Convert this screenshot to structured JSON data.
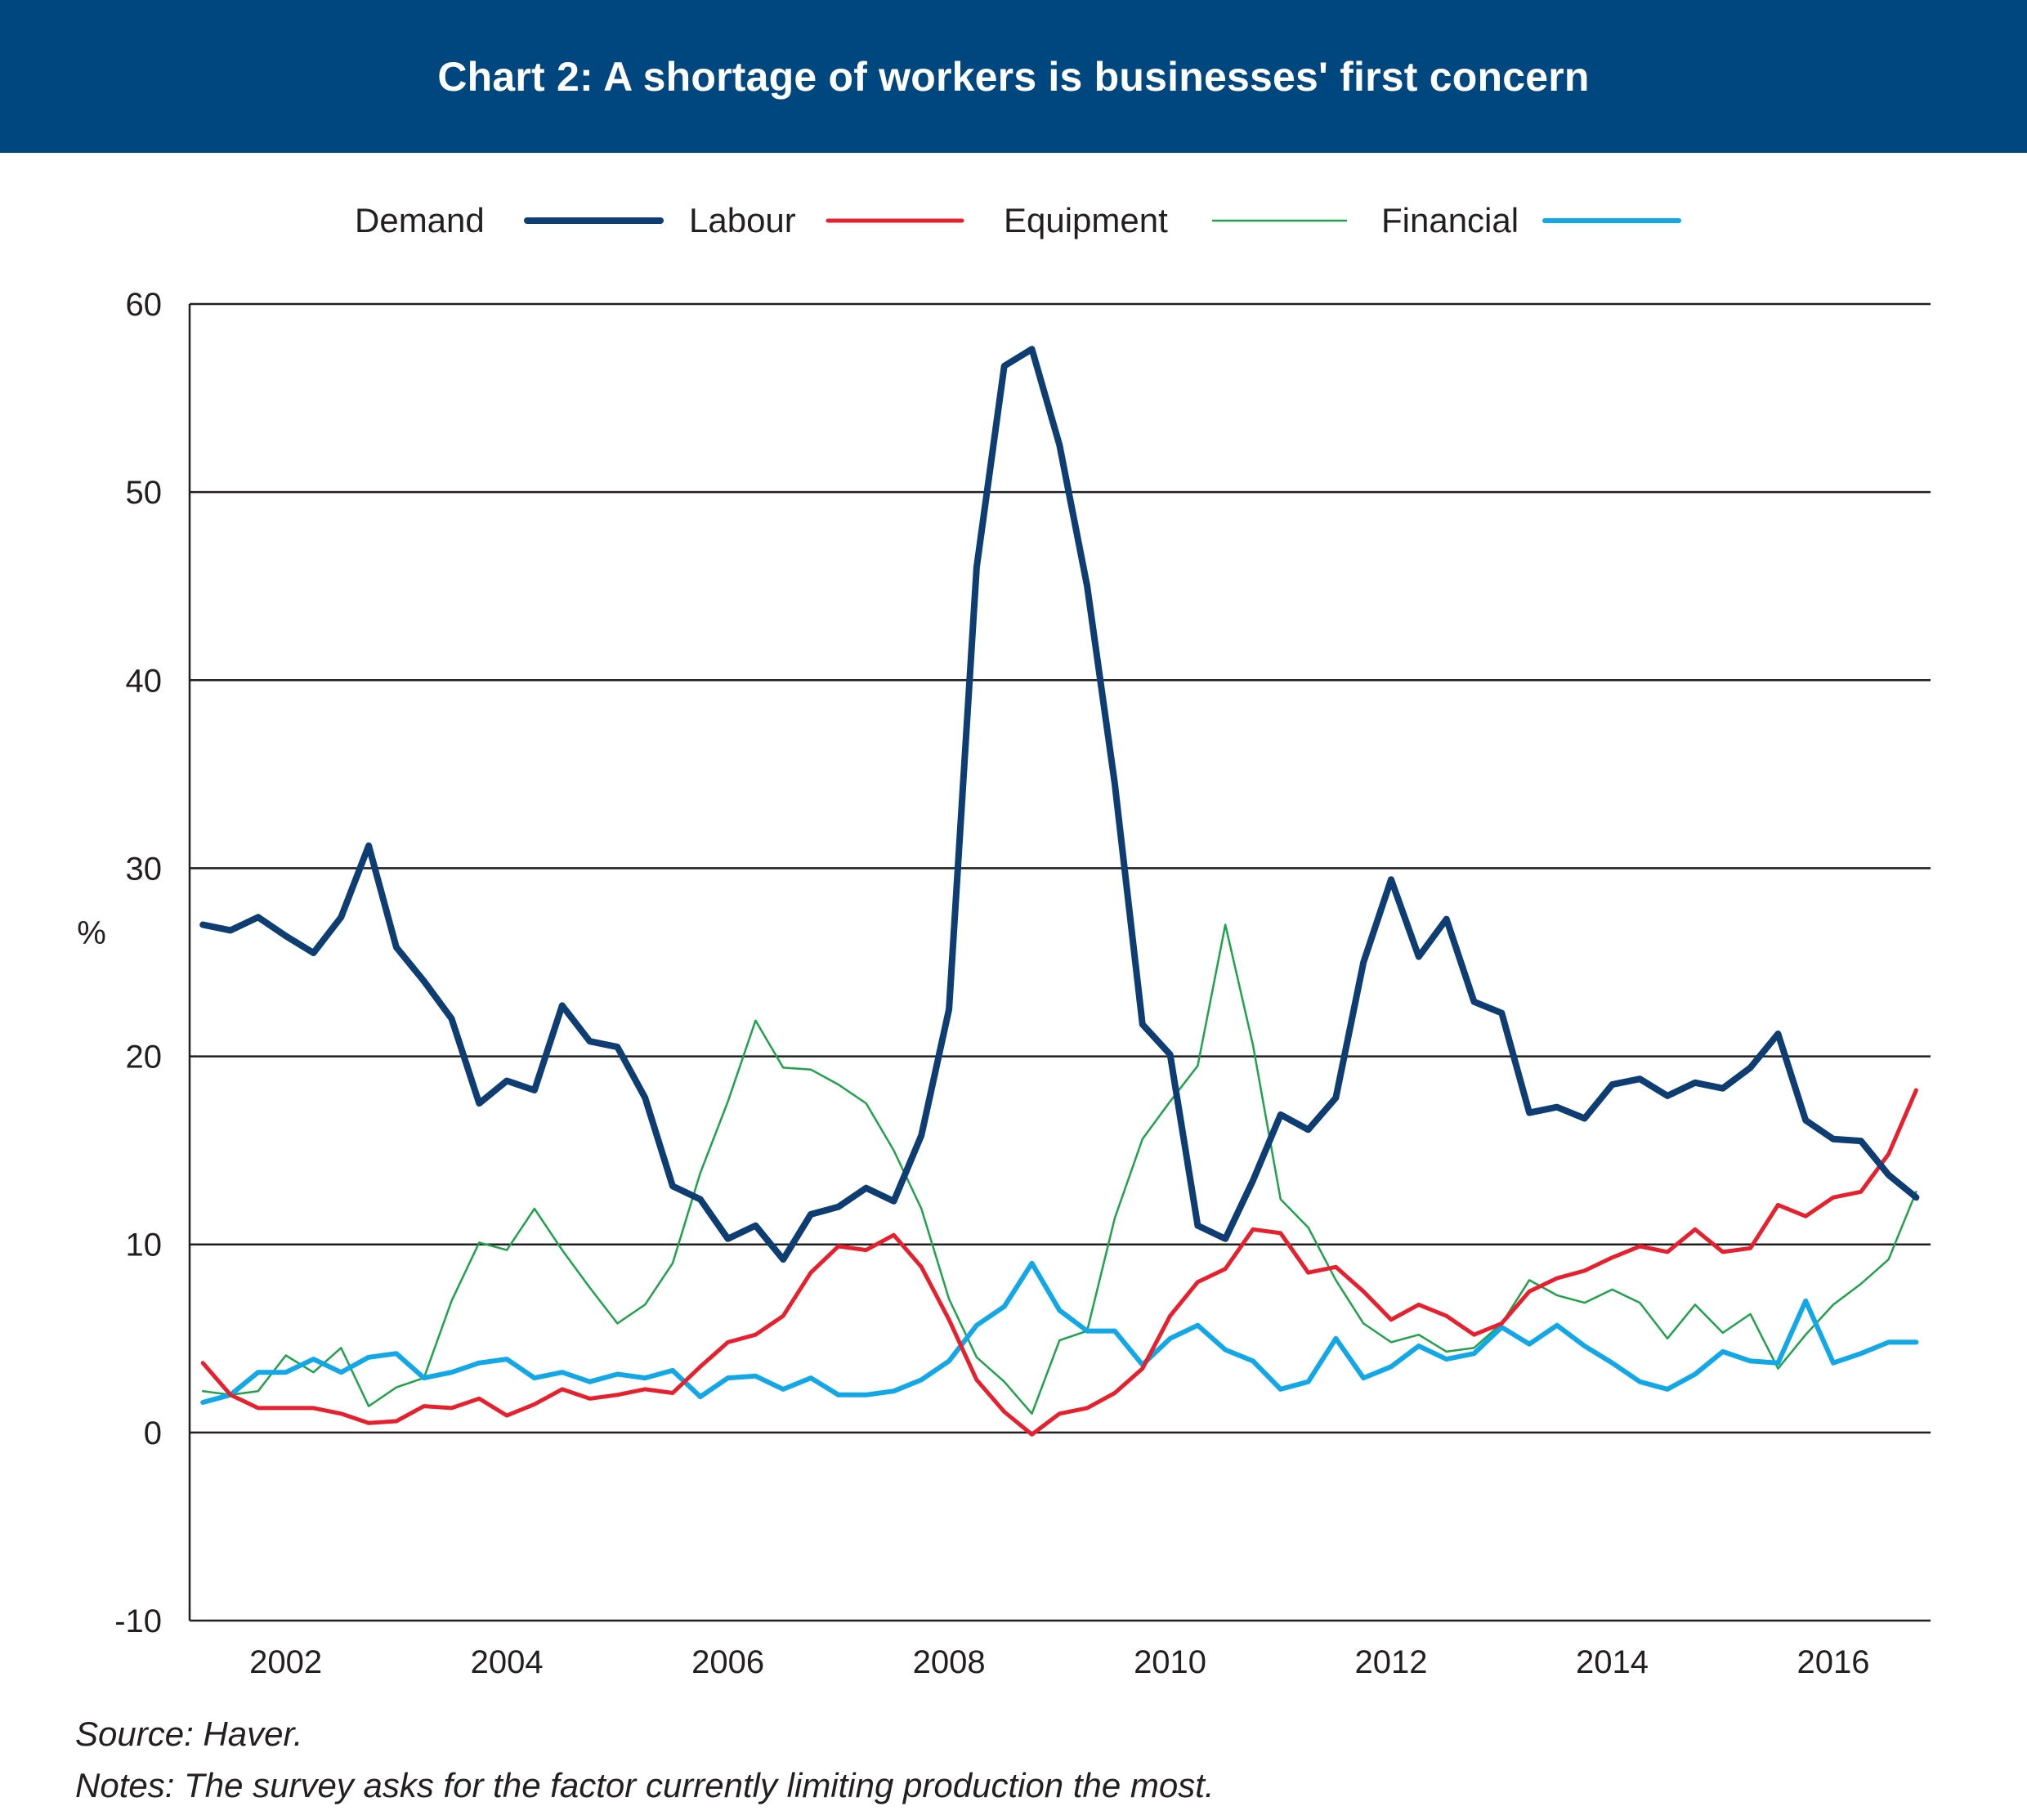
{
  "header": {
    "title": "Chart 2: A shortage of workers is businesses' first concern"
  },
  "footer": {
    "source": "Source: Haver.",
    "notes": "Notes: The survey asks for the factor currently limiting production the most."
  },
  "colors": {
    "banner": "#00467f",
    "demand": "#0d3d72",
    "labour": "#e8202e",
    "equipment": "#1ea24a",
    "financial": "#12a8e8"
  },
  "chart_data": {
    "type": "line",
    "title": "Chart 2: A shortage of workers is businesses' first concern",
    "ylabel": "%",
    "xlabel": "",
    "ylim": [
      -10,
      60
    ],
    "yticks": [
      -10,
      0,
      10,
      20,
      30,
      40,
      50,
      60
    ],
    "xlim": [
      2001.13,
      2016.88
    ],
    "xticks": [
      2002,
      2004,
      2006,
      2008,
      2010,
      2012,
      2014,
      2016
    ],
    "grid": "horizontal",
    "legend_position": "top",
    "x": [
      2001.25,
      2001.5,
      2001.75,
      2002.0,
      2002.25,
      2002.5,
      2002.75,
      2003.0,
      2003.25,
      2003.5,
      2003.75,
      2004.0,
      2004.25,
      2004.5,
      2004.75,
      2005.0,
      2005.25,
      2005.5,
      2005.75,
      2006.0,
      2006.25,
      2006.5,
      2006.75,
      2007.0,
      2007.25,
      2007.5,
      2007.75,
      2008.0,
      2008.25,
      2008.5,
      2008.75,
      2009.0,
      2009.25,
      2009.5,
      2009.75,
      2010.0,
      2010.25,
      2010.5,
      2010.75,
      2011.0,
      2011.25,
      2011.5,
      2011.75,
      2012.0,
      2012.25,
      2012.5,
      2012.75,
      2013.0,
      2013.25,
      2013.5,
      2013.75,
      2014.0,
      2014.25,
      2014.5,
      2014.75,
      2015.0,
      2015.25,
      2015.5,
      2015.75,
      2016.0,
      2016.25,
      2016.5,
      2016.75
    ],
    "series": [
      {
        "name": "Demand",
        "width": 8,
        "values": [
          27.0,
          26.7,
          27.4,
          26.4,
          25.5,
          27.4,
          31.2,
          25.8,
          24.0,
          22.0,
          17.5,
          18.7,
          18.2,
          22.7,
          20.8,
          20.5,
          17.8,
          13.1,
          12.4,
          10.3,
          11.0,
          9.2,
          11.6,
          12.0,
          13.0,
          12.3,
          15.8,
          22.5,
          46.0,
          56.7,
          57.6,
          52.5,
          45.0,
          34.5,
          21.7,
          20.1,
          11.0,
          10.3,
          13.4,
          16.9,
          16.1,
          17.8,
          25.0,
          29.4,
          25.3,
          27.3,
          22.9,
          22.3,
          17.0,
          17.3,
          16.7,
          18.5,
          18.8,
          17.9,
          18.6,
          18.3,
          19.4,
          21.2,
          16.6,
          15.6,
          15.5,
          13.7,
          12.5
        ]
      },
      {
        "name": "Labour",
        "width": 5,
        "values": [
          3.7,
          2.0,
          1.3,
          1.3,
          1.3,
          1.0,
          0.5,
          0.6,
          1.4,
          1.3,
          1.8,
          0.9,
          1.5,
          2.3,
          1.8,
          2.0,
          2.3,
          2.1,
          3.5,
          4.8,
          5.2,
          6.2,
          8.5,
          9.9,
          9.7,
          10.5,
          8.8,
          6.0,
          2.8,
          1.1,
          -0.1,
          1.0,
          1.3,
          2.1,
          3.4,
          6.2,
          8.0,
          8.7,
          10.8,
          10.6,
          8.5,
          8.8,
          7.5,
          6.0,
          6.8,
          6.2,
          5.2,
          5.8,
          7.5,
          8.2,
          8.6,
          9.3,
          9.9,
          9.6,
          10.8,
          9.6,
          9.8,
          12.1,
          11.5,
          12.5,
          12.8,
          14.8,
          18.2
        ]
      },
      {
        "name": "Equipment",
        "width": 2.5,
        "values": [
          2.2,
          2.0,
          2.2,
          4.1,
          3.2,
          4.5,
          1.4,
          2.4,
          2.9,
          7.0,
          10.1,
          9.7,
          11.9,
          9.7,
          7.7,
          5.8,
          6.8,
          9.0,
          13.8,
          17.6,
          21.9,
          19.4,
          19.3,
          18.5,
          17.5,
          15.0,
          11.9,
          7.1,
          4.0,
          2.7,
          1.0,
          4.9,
          5.4,
          11.4,
          15.6,
          17.6,
          19.5,
          27.0,
          20.6,
          12.4,
          10.9,
          8.1,
          5.8,
          4.8,
          5.2,
          4.3,
          4.5,
          5.8,
          8.1,
          7.3,
          6.9,
          7.6,
          6.9,
          5.0,
          6.8,
          5.3,
          6.3,
          3.4,
          5.2,
          6.8,
          7.9,
          9.2,
          12.8
        ]
      },
      {
        "name": "Financial",
        "width": 6,
        "values": [
          1.6,
          2.0,
          3.2,
          3.2,
          3.9,
          3.2,
          4.0,
          4.2,
          2.9,
          3.2,
          3.7,
          3.9,
          2.9,
          3.2,
          2.7,
          3.1,
          2.9,
          3.3,
          1.9,
          2.9,
          3.0,
          2.3,
          2.9,
          2.0,
          2.0,
          2.2,
          2.8,
          3.8,
          5.7,
          6.7,
          9.0,
          6.5,
          5.4,
          5.4,
          3.6,
          5.0,
          5.7,
          4.4,
          3.8,
          2.3,
          2.7,
          5.0,
          2.9,
          3.5,
          4.6,
          3.9,
          4.2,
          5.6,
          4.7,
          5.7,
          4.6,
          3.7,
          2.7,
          2.3,
          3.1,
          4.3,
          3.8,
          3.7,
          7.0,
          3.7,
          4.2,
          4.8,
          4.8
        ]
      }
    ]
  }
}
